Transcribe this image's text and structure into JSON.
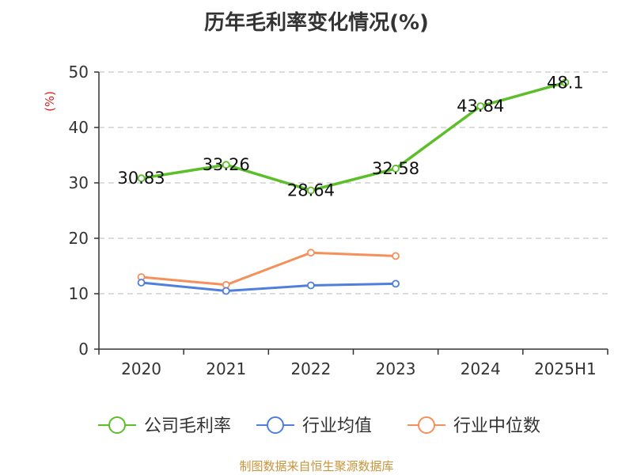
{
  "source": "制图数据来自恒生聚源数据库",
  "chart_data": {
    "type": "line",
    "title": "历年毛利率变化情况(%)",
    "ylabel": "(%)",
    "xlabel": "",
    "ylim": [
      0,
      50
    ],
    "yticks": [
      0,
      10,
      20,
      30,
      40,
      50
    ],
    "grid": true,
    "legend_position": "bottom",
    "categories": [
      "2020",
      "2021",
      "2022",
      "2023",
      "2024",
      "2025H1"
    ],
    "series": [
      {
        "name": "公司毛利率",
        "color": "#5cbf2a",
        "values": [
          30.83,
          33.26,
          28.64,
          32.58,
          43.84,
          48.1
        ],
        "labels": [
          "30.83",
          "33.26",
          "28.64",
          "32.58",
          "43.84",
          "48.1"
        ]
      },
      {
        "name": "行业均值",
        "color": "#4f7fdc",
        "values": [
          12.0,
          10.5,
          11.5,
          11.8,
          null,
          null
        ]
      },
      {
        "name": "行业中位数",
        "color": "#f5905a",
        "values": [
          13.0,
          11.6,
          17.4,
          16.8,
          null,
          null
        ]
      }
    ]
  }
}
